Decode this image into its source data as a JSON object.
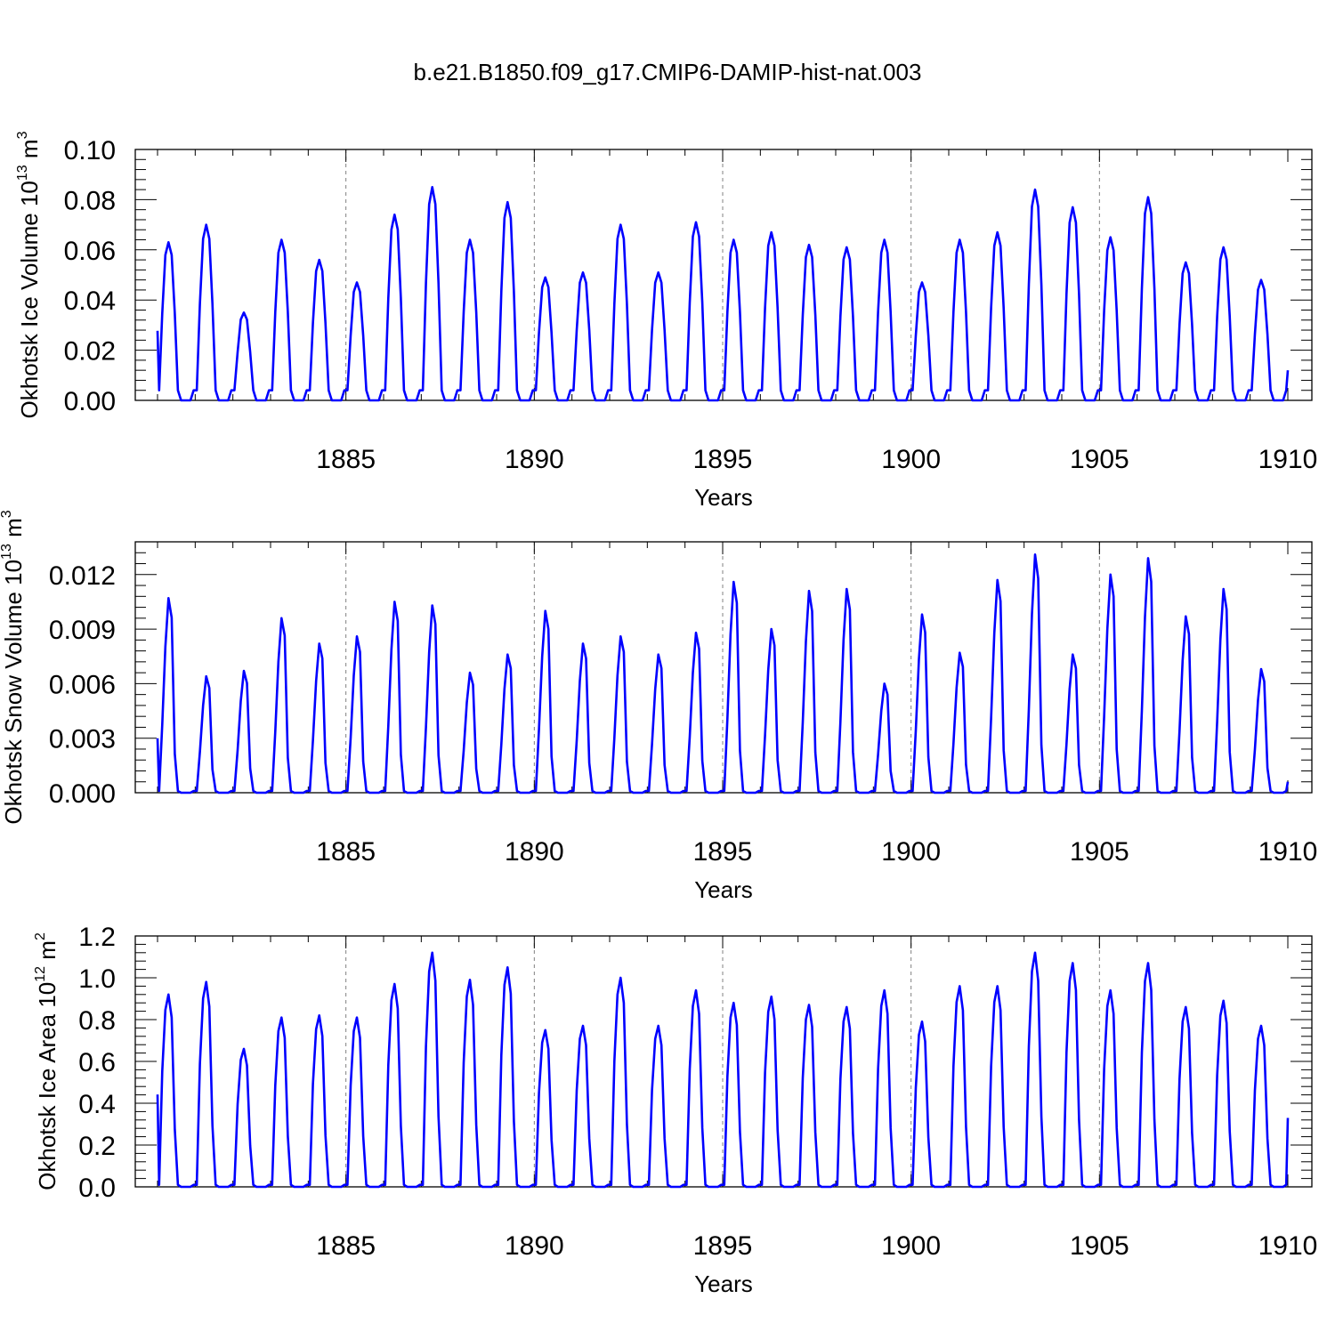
{
  "figure_title": "b.e21.B1850.f09_g17.CMIP6-DAMIP-hist-nat.003",
  "colors": {
    "line": "#0000ff",
    "axis": "#000000",
    "grid": "#808080"
  },
  "chart_data": [
    {
      "type": "line",
      "title": "",
      "xlabel": "Years",
      "ylabel": "Okhotsk Ice Volume 10",
      "ylabel_exp": "13",
      "ylabel_unit": " m",
      "ylabel_unit_exp": "3",
      "xlim": [
        1880.0,
        1910.0
      ],
      "ylim": [
        0.0,
        0.1
      ],
      "x_ticks": [
        1885,
        1890,
        1895,
        1900,
        1905,
        1910
      ],
      "x_tick_labels": [
        "1885",
        "1890",
        "1895",
        "1900",
        "1905",
        "1910"
      ],
      "y_ticks": [
        0.0,
        0.02,
        0.04,
        0.06,
        0.08,
        0.1
      ],
      "y_tick_labels": [
        "0.00",
        "0.02",
        "0.04",
        "0.06",
        "0.08",
        "0.10"
      ],
      "vertical_grid_years": [
        1885,
        1890,
        1895,
        1900,
        1905
      ],
      "series": [
        {
          "name": "Okhotsk Ice Volume",
          "start_year": 1880.0,
          "season_months": [
            1,
            2,
            3,
            4,
            5
          ],
          "season_shape": [
            0.55,
            0.92,
            1.0,
            0.92,
            0.55
          ],
          "season_floor": 0.004,
          "annual_peaks": [
            0.063,
            0.07,
            0.035,
            0.064,
            0.056,
            0.047,
            0.074,
            0.085,
            0.064,
            0.079,
            0.049,
            0.051,
            0.07,
            0.051,
            0.071,
            0.064,
            0.067,
            0.062,
            0.061,
            0.064,
            0.047,
            0.064,
            0.067,
            0.084,
            0.077,
            0.065,
            0.081,
            0.055,
            0.061,
            0.048
          ],
          "end_value": 0.012
        }
      ]
    },
    {
      "type": "line",
      "title": "",
      "xlabel": "Years",
      "ylabel": "Okhotsk Snow Volume 10",
      "ylabel_exp": "13",
      "ylabel_unit": " m",
      "ylabel_unit_exp": "3",
      "xlim": [
        1880.0,
        1910.0
      ],
      "ylim": [
        0.0,
        0.0138
      ],
      "x_ticks": [
        1885,
        1890,
        1895,
        1900,
        1905,
        1910
      ],
      "x_tick_labels": [
        "1885",
        "1890",
        "1895",
        "1900",
        "1905",
        "1910"
      ],
      "y_ticks": [
        0.0,
        0.003,
        0.006,
        0.009,
        0.012
      ],
      "y_tick_labels": [
        "0.000",
        "0.003",
        "0.006",
        "0.009",
        "0.012"
      ],
      "vertical_grid_years": [
        1885,
        1890,
        1895,
        1900,
        1905
      ],
      "series": [
        {
          "name": "Okhotsk Snow Volume",
          "start_year": 1880.0,
          "season_months": [
            1,
            2,
            3,
            4,
            5
          ],
          "season_shape": [
            0.35,
            0.75,
            1.0,
            0.9,
            0.2
          ],
          "season_floor": 0.0001,
          "annual_peaks": [
            0.0107,
            0.0064,
            0.0067,
            0.0096,
            0.0082,
            0.0086,
            0.0105,
            0.0103,
            0.0066,
            0.0076,
            0.01,
            0.0082,
            0.0086,
            0.0076,
            0.0088,
            0.0116,
            0.009,
            0.0111,
            0.0112,
            0.006,
            0.0098,
            0.0077,
            0.0117,
            0.0131,
            0.0076,
            0.012,
            0.0129,
            0.0097,
            0.0112,
            0.0068
          ],
          "end_value": 0.0006
        }
      ]
    },
    {
      "type": "line",
      "title": "",
      "xlabel": "Years",
      "ylabel": "Okhotsk Ice Area 10",
      "ylabel_exp": "12",
      "ylabel_unit": " m",
      "ylabel_unit_exp": "2",
      "xlim": [
        1880.0,
        1910.0
      ],
      "ylim": [
        0.0,
        1.2
      ],
      "x_ticks": [
        1885,
        1890,
        1895,
        1900,
        1905,
        1910
      ],
      "x_tick_labels": [
        "1885",
        "1890",
        "1895",
        "1900",
        "1905",
        "1910"
      ],
      "y_ticks": [
        0.0,
        0.2,
        0.4,
        0.6,
        0.8,
        1.0,
        1.2
      ],
      "y_tick_labels": [
        "0.0",
        "0.2",
        "0.4",
        "0.6",
        "0.8",
        "1.0",
        "1.2"
      ],
      "vertical_grid_years": [
        1885,
        1890,
        1895,
        1900,
        1905
      ],
      "series": [
        {
          "name": "Okhotsk Ice Area",
          "start_year": 1880.0,
          "season_months": [
            1,
            2,
            3,
            4,
            5
          ],
          "season_shape": [
            0.6,
            0.92,
            1.0,
            0.88,
            0.3
          ],
          "season_floor": 0.01,
          "annual_peaks": [
            0.92,
            0.98,
            0.66,
            0.81,
            0.82,
            0.81,
            0.97,
            1.12,
            0.99,
            1.05,
            0.75,
            0.77,
            1.0,
            0.77,
            0.94,
            0.88,
            0.91,
            0.87,
            0.86,
            0.94,
            0.79,
            0.96,
            0.96,
            1.12,
            1.07,
            0.94,
            1.07,
            0.86,
            0.89,
            0.77
          ],
          "end_value": 0.33
        }
      ]
    }
  ]
}
